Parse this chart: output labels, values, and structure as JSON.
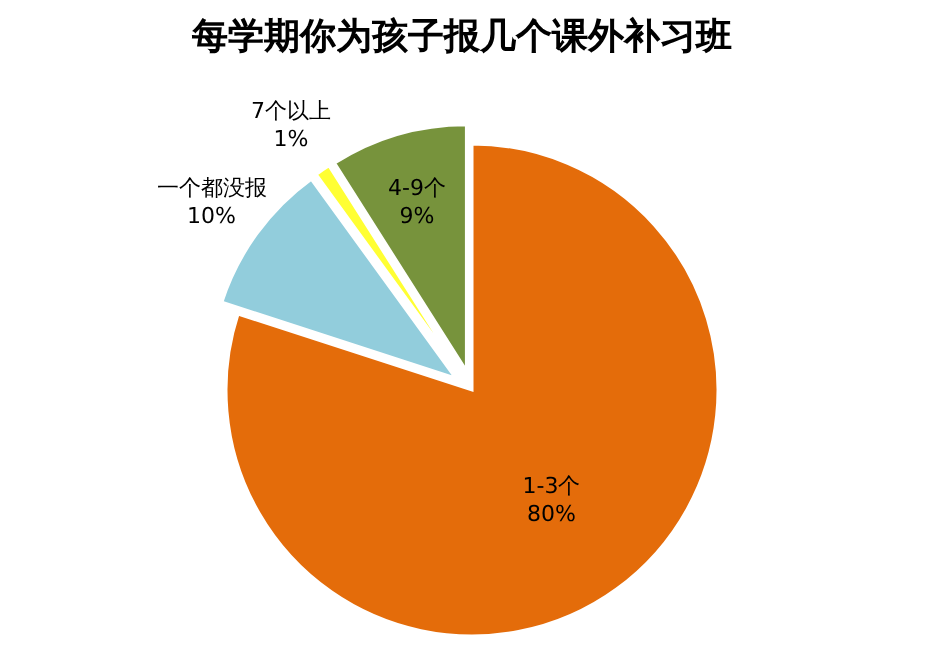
{
  "chart_data": {
    "type": "pie",
    "title": "每学期你为孩子报几个课外补习班",
    "categories": [
      "1-3个",
      "一个都没报",
      "7个以上",
      "4-9个"
    ],
    "values": [
      80,
      10,
      1,
      9
    ],
    "colors": [
      "#e46c0a",
      "#92cddc",
      "#ffff33",
      "#77933c"
    ],
    "value_labels": [
      "80%",
      "10%",
      "1%",
      "9%"
    ],
    "legend": false
  }
}
